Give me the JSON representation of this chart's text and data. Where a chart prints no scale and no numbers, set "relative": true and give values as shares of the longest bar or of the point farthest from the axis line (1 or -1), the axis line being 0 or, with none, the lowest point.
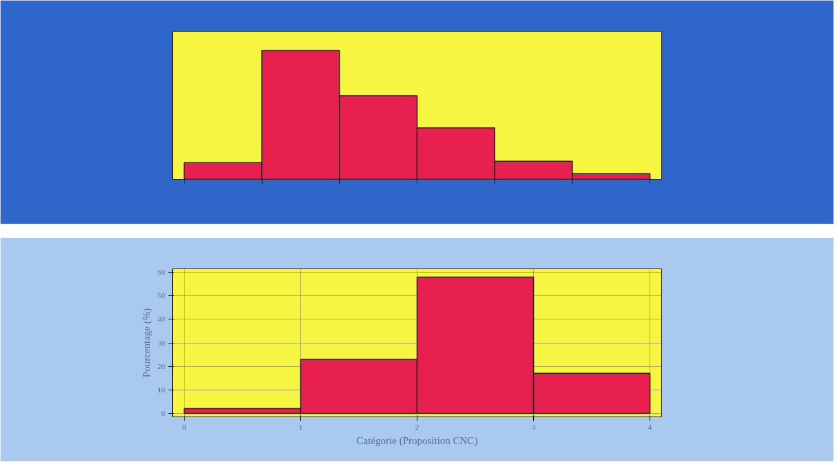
{
  "chart_data": [
    {
      "type": "bar",
      "relative": true,
      "categories": [
        null,
        null,
        null,
        null,
        null,
        null
      ],
      "values": [
        0.13,
        1,
        0.65,
        0.4,
        0.14,
        0.044
      ],
      "color": "#e8204f"
    },
    {
      "type": "histogram",
      "xlabel": "Catégorie (Proposition CNC)",
      "ylabel": "Pourcentage (%)",
      "bins": [
        0,
        1,
        2,
        3,
        4
      ],
      "values": [
        2,
        23,
        58,
        17
      ],
      "color": "#e8204f",
      "xlim": [
        -0.1,
        4.1
      ],
      "ylim": [
        -1.5,
        61.5
      ],
      "xticks": [
        0,
        1,
        2,
        3,
        4
      ],
      "yticks": [
        0,
        10,
        20,
        30,
        40,
        50,
        60
      ],
      "grid": true
    }
  ]
}
